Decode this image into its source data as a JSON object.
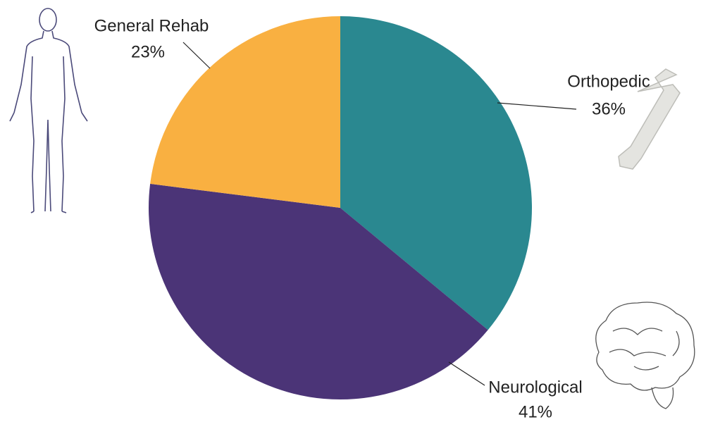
{
  "chart_data": {
    "type": "pie",
    "categories": [
      "Orthopedic",
      "Neurological",
      "General Rehab"
    ],
    "values": [
      36,
      41,
      23
    ],
    "value_labels": [
      "36%",
      "41%",
      "23%"
    ],
    "colors": [
      "#2a8890",
      "#4b3477",
      "#f9b041"
    ]
  }
}
